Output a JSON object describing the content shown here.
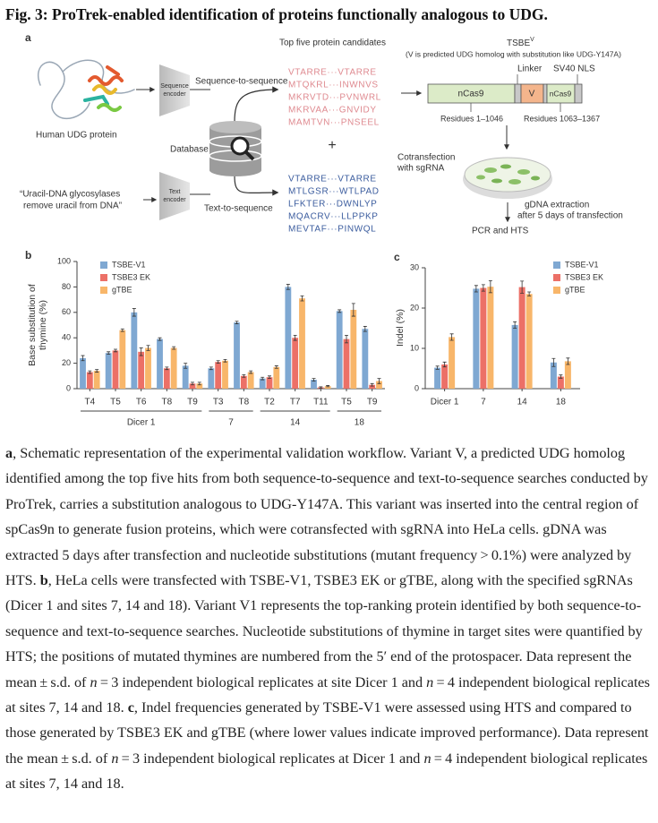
{
  "title": "Fig. 3: ProTrek-enabled identification of proteins functionally analogous to UDG.",
  "panel_a": {
    "label": "a",
    "protein_label": "Human UDG protein",
    "seq_encoder": [
      "Sequence",
      "encoder"
    ],
    "seq_to_seq": "Sequence-to-sequence",
    "database": "Database",
    "query": [
      "“Uracil-DNA glycosylases",
      "remove uracil from DNA”"
    ],
    "text_encoder": [
      "Text",
      "encoder"
    ],
    "text_to_seq": "Text-to-sequence",
    "candidates_title": "Top five protein candidates",
    "seq_hits": [
      "VTARRE···VTARRE",
      "MTQKRL···INWNVS",
      "MKRVTD···PVNWRL",
      "MKRVAA···GNVIDY",
      "MAMTVN···PNSEEL"
    ],
    "plus": "+",
    "text_hits": [
      "VTARRE···VTARRE",
      "MTLGSR···WTLPAD",
      "LFKTER···DWNLYP",
      "MQACRV···LLPPKP",
      "MEVTAF···PINWQL"
    ],
    "construct_name": "TSBE",
    "construct_sup": "V",
    "construct_note": "(V is predicted UDG homolog with substitution like UDG-Y147A)",
    "linker": "Linker",
    "nls": "SV40 NLS",
    "ncas9_a": "nCas9",
    "variant": "V",
    "ncas9_b": "nCas9",
    "residues_a": "Residues 1–1046",
    "residues_b": "Residues 1063–1367",
    "cotransfection": [
      "Cotransfection",
      "with sgRNA"
    ],
    "extraction": [
      "gDNA extraction",
      "after 5 days of transfection"
    ],
    "pcr": "PCR and HTS"
  },
  "chart_data": [
    {
      "type": "bar",
      "panel": "b",
      "ylabel": "Base substitution of thymine (%)",
      "groups": [
        {
          "name": "Dicer 1",
          "categories": [
            "T4",
            "T5",
            "T6",
            "T8",
            "T9"
          ]
        },
        {
          "name": "7",
          "categories": [
            "T3",
            "T8"
          ]
        },
        {
          "name": "14",
          "categories": [
            "T2",
            "T7",
            "T11"
          ]
        },
        {
          "name": "18",
          "categories": [
            "T5",
            "T9"
          ]
        }
      ],
      "series": [
        {
          "name": "TSBE-V1",
          "color": "#7fa8d2",
          "values": [
            24,
            28,
            60,
            39,
            18,
            16,
            52,
            8,
            80,
            7,
            61,
            47
          ],
          "errors": [
            2,
            1,
            3,
            1,
            2,
            1,
            1,
            1,
            2,
            1,
            1,
            2
          ]
        },
        {
          "name": "TSBE3 EK",
          "color": "#ec7067",
          "values": [
            13,
            30,
            29,
            16,
            4,
            21,
            10,
            9,
            40,
            1,
            39,
            3
          ],
          "errors": [
            1,
            1,
            3,
            1,
            1,
            1,
            1,
            1,
            2,
            0.5,
            3,
            1
          ]
        },
        {
          "name": "gTBE",
          "color": "#f8b66a",
          "values": [
            14,
            46,
            32,
            32,
            4,
            22,
            13,
            17,
            71,
            2,
            62,
            6
          ],
          "errors": [
            1,
            1,
            2,
            1,
            1,
            1,
            1,
            1,
            2,
            0.5,
            5,
            2
          ]
        }
      ],
      "ylim": [
        0,
        100
      ],
      "yticks": [
        0,
        20,
        40,
        60,
        80,
        100
      ],
      "legend": "upper left"
    },
    {
      "type": "bar",
      "panel": "c",
      "ylabel": "Indel (%)",
      "categories": [
        "Dicer 1",
        "7",
        "14",
        "18"
      ],
      "series": [
        {
          "name": "TSBE-V1",
          "color": "#7fa8d2",
          "values": [
            5.2,
            24.8,
            15.8,
            6.5
          ],
          "errors": [
            0.4,
            0.8,
            0.8,
            1
          ]
        },
        {
          "name": "TSBE3 EK",
          "color": "#ec7067",
          "values": [
            6,
            25,
            25.2,
            3
          ],
          "errors": [
            0.6,
            0.8,
            1.5,
            0.4
          ]
        },
        {
          "name": "gTBE",
          "color": "#f8b66a",
          "values": [
            12.8,
            25.3,
            23.5,
            6.8
          ],
          "errors": [
            0.8,
            1.5,
            0.5,
            0.8
          ]
        }
      ],
      "ylim": [
        0,
        30
      ],
      "yticks": [
        0,
        10,
        20,
        30
      ],
      "legend": "upper right"
    }
  ],
  "caption": [
    {
      "bold": "a"
    },
    ", Schematic representation of the experimental validation workflow. Variant V, a predicted UDG homolog identified among the top five hits from both sequence-to-sequence and text-to-sequence searches conducted by ProTrek, carries a substitution analogous to UDG-Y147A. This variant was inserted into the central region of spCas9n to generate fusion proteins, which were cotransfected with sgRNA into HeLa cells. gDNA was extracted 5 days after transfection and nucleotide substitutions (mutant frequency > 0.1%) were analyzed by HTS. ",
    {
      "bold": "b"
    },
    ", HeLa cells were transfected with TSBE-V1, TSBE3 EK or gTBE, along with the specified sgRNAs (Dicer 1 and sites 7, 14 and 18). Variant V1 represents the top-ranking protein identified by both sequence-to-sequence and text-to-sequence searches. Nucleotide substitutions of thymine in target sites were quantified by HTS; the positions of mutated thymines are numbered from the 5′ end of the protospacer. Data represent the mean ± s.d. of ",
    {
      "italic": "n"
    },
    " = 3 independent biological replicates at site Dicer 1 and ",
    {
      "italic": "n"
    },
    " = 4 independent biological replicates at sites 7, 14 and 18. ",
    {
      "bold": "c"
    },
    ", Indel frequencies generated by TSBE-V1 were assessed using HTS and compared to those generated by TSBE3 EK and gTBE (where lower values indicate improved performance). Data represent the mean ± s.d. of ",
    {
      "italic": "n"
    },
    " = 3 independent biological replicates at Dicer 1 and ",
    {
      "italic": "n"
    },
    " = 4 independent biological replicates at sites 7, 14 and 18."
  ]
}
